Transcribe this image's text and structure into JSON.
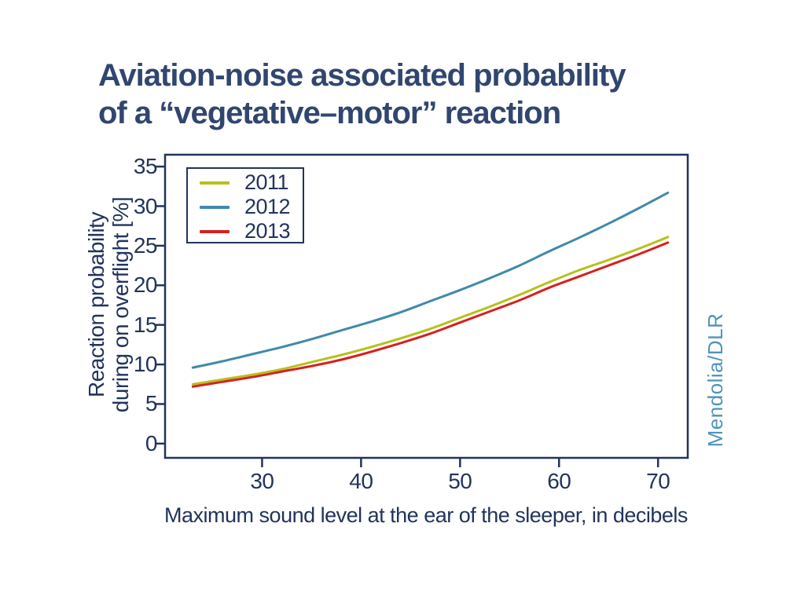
{
  "page": {
    "background": "#ffffff"
  },
  "title": {
    "line1": "Aviation-noise associated probability",
    "line2": "of a “vegetative–motor” reaction",
    "color": "#31466f"
  },
  "credit": {
    "text": "Mendolia/DLR",
    "color": "#4f93b8"
  },
  "chart_data": {
    "type": "line",
    "title": "Aviation-noise associated probability of a “vegetative–motor” reaction",
    "xlabel": "Maximum sound level at the ear of the sleeper, in decibels",
    "ylabel_line1": "Reaction probability",
    "ylabel_line2": "during on overflight [%]",
    "grid": false,
    "legend_position": "top-left",
    "axis_color": "#22345c",
    "x_ticks": [
      30,
      40,
      50,
      60,
      70
    ],
    "y_ticks": [
      0,
      5,
      10,
      15,
      20,
      25,
      30,
      35
    ],
    "x_range": [
      20.2,
      73.0
    ],
    "y_range": [
      -1.8,
      36.5
    ],
    "x_unit": "dB",
    "y_unit": "%",
    "x": [
      23,
      26,
      29,
      32,
      35,
      38,
      41,
      44,
      47,
      50,
      53,
      56,
      59,
      62,
      65,
      68,
      71
    ],
    "series": [
      {
        "name": "2011",
        "color": "#b5c11c",
        "values": [
          7.5,
          8.1,
          8.7,
          9.4,
          10.3,
          11.2,
          12.2,
          13.3,
          14.5,
          15.9,
          17.3,
          18.8,
          20.4,
          21.9,
          23.2,
          24.6,
          26.1
        ]
      },
      {
        "name": "2012",
        "color": "#3f8aab",
        "values": [
          9.6,
          10.4,
          11.3,
          12.2,
          13.2,
          14.3,
          15.4,
          16.6,
          18.0,
          19.4,
          20.9,
          22.5,
          24.3,
          26.0,
          27.8,
          29.7,
          31.7
        ]
      },
      {
        "name": "2013",
        "color": "#d62020",
        "values": [
          7.2,
          7.8,
          8.4,
          9.1,
          9.8,
          10.6,
          11.6,
          12.7,
          13.9,
          15.3,
          16.7,
          18.1,
          19.7,
          21.1,
          22.5,
          23.9,
          25.4
        ]
      }
    ]
  }
}
